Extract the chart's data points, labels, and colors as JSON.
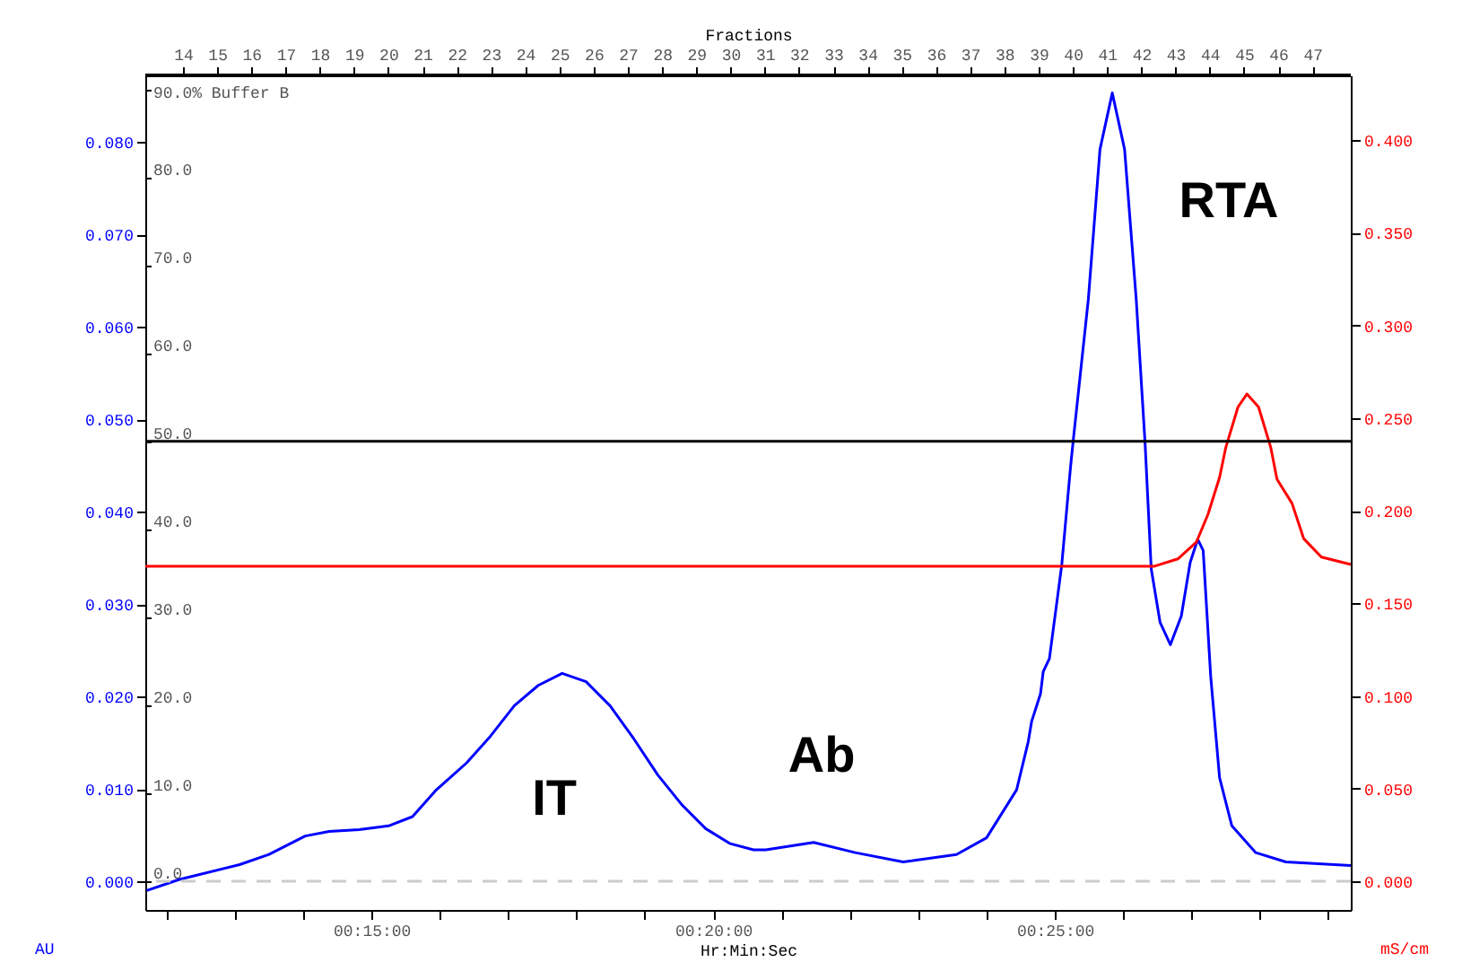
{
  "chart_data": {
    "type": "line",
    "xlabel": "Hr:Min:Sec",
    "ylabel": "AU",
    "y2label": "mS/cm",
    "x2label": "Fractions",
    "xlim": [
      11.69,
      29.33
    ],
    "xticks": [
      {
        "value": 12,
        "label": null
      },
      {
        "value": 13,
        "label": null
      },
      {
        "value": 14,
        "label": null
      },
      {
        "value": 15,
        "label": "00:15:00"
      },
      {
        "value": 16,
        "label": null
      },
      {
        "value": 17,
        "label": null
      },
      {
        "value": 18,
        "label": null
      },
      {
        "value": 19,
        "label": null
      },
      {
        "value": 20,
        "label": "00:20:00"
      },
      {
        "value": 21,
        "label": null
      },
      {
        "value": 22,
        "label": null
      },
      {
        "value": 23,
        "label": null
      },
      {
        "value": 24,
        "label": null
      },
      {
        "value": 25,
        "label": "00:25:00"
      },
      {
        "value": 26,
        "label": null
      },
      {
        "value": 27,
        "label": null
      },
      {
        "value": 28,
        "label": null
      },
      {
        "value": 29,
        "label": null
      }
    ],
    "x2lim": [
      12.9,
      48.12
    ],
    "x2ticks": [
      14,
      15,
      16,
      17,
      18,
      19,
      20,
      21,
      22,
      23,
      24,
      25,
      26,
      27,
      28,
      29,
      30,
      31,
      32,
      33,
      34,
      35,
      36,
      37,
      38,
      39,
      40,
      41,
      42,
      43,
      44,
      45,
      46,
      47
    ],
    "ylim": [
      -0.0031,
      0.0872
    ],
    "yticks": [
      {
        "value": 0,
        "label": "0.000"
      },
      {
        "value": 0.01,
        "label": "0.010"
      },
      {
        "value": 0.02,
        "label": "0.020"
      },
      {
        "value": 0.03,
        "label": "0.030"
      },
      {
        "value": 0.04,
        "label": "0.040"
      },
      {
        "value": 0.05,
        "label": "0.050"
      },
      {
        "value": 0.06,
        "label": "0.060"
      },
      {
        "value": 0.07,
        "label": "0.070"
      },
      {
        "value": 0.08,
        "label": "0.080"
      }
    ],
    "y2lim": [
      -0.0155,
      0.435
    ],
    "y2ticks": [
      {
        "value": 0,
        "label": "0.000"
      },
      {
        "value": 0.05,
        "label": "0.050"
      },
      {
        "value": 0.1,
        "label": "0.100"
      },
      {
        "value": 0.15,
        "label": "0.150"
      },
      {
        "value": 0.2,
        "label": "0.200"
      },
      {
        "value": 0.25,
        "label": "0.250"
      },
      {
        "value": 0.3,
        "label": "0.300"
      },
      {
        "value": 0.35,
        "label": "0.350"
      },
      {
        "value": 0.4,
        "label": "0.400"
      }
    ],
    "y3lim": [
      -3.3,
      91.6
    ],
    "y3ticks": [
      {
        "value": 0,
        "label": "0.0"
      },
      {
        "value": 10,
        "label": "10.0"
      },
      {
        "value": 20,
        "label": "20.0"
      },
      {
        "value": 30,
        "label": "30.0"
      },
      {
        "value": 40,
        "label": "40.0"
      },
      {
        "value": 50,
        "label": "50.0"
      },
      {
        "value": 60,
        "label": "60.0"
      },
      {
        "value": 70,
        "label": "70.0"
      },
      {
        "value": 80,
        "label": "80.0"
      },
      {
        "value": 90,
        "label": "90.0% Buffer B"
      }
    ],
    "series": [
      {
        "color": "#0000ff",
        "x": [
          11.71,
          12.19,
          13.07,
          13.5,
          14.03,
          14.38,
          14.82,
          15.25,
          15.6,
          15.95,
          16.39,
          16.74,
          17.09,
          17.44,
          17.79,
          18.14,
          18.49,
          18.84,
          19.19,
          19.54,
          19.89,
          20.24,
          20.59,
          20.77,
          21.47,
          22.08,
          22.78,
          23.56,
          24.0,
          24.44,
          24.61,
          24.66,
          24.79,
          24.83,
          24.92,
          25.1,
          25.23,
          25.27,
          25.49,
          25.66,
          25.84,
          26.02,
          26.19,
          26.32,
          26.41,
          26.54,
          26.69,
          26.85,
          26.98,
          27.09,
          27.17,
          27.28,
          27.41,
          27.59,
          27.94,
          28.38,
          29.33
        ],
        "values": [
          -0.001,
          0.0002,
          0.0018,
          0.0029,
          0.0049,
          0.0054,
          0.0056,
          0.006,
          0.007,
          0.0099,
          0.0128,
          0.0157,
          0.019,
          0.0212,
          0.0225,
          0.0216,
          0.019,
          0.0154,
          0.0115,
          0.0083,
          0.0057,
          0.0041,
          0.0034,
          0.0034,
          0.0042,
          0.0031,
          0.0021,
          0.0029,
          0.0047,
          0.0099,
          0.0151,
          0.0173,
          0.0203,
          0.0227,
          0.0241,
          0.0342,
          0.0449,
          0.0478,
          0.063,
          0.0792,
          0.0853,
          0.0792,
          0.063,
          0.0474,
          0.0338,
          0.028,
          0.0256,
          0.0287,
          0.0345,
          0.037,
          0.0358,
          0.0222,
          0.0112,
          0.006,
          0.0031,
          0.0021,
          0.0017
        ]
      },
      {
        "color": "#ff0000",
        "axis": "y2",
        "x": [
          11.69,
          26.45,
          26.8,
          27.07,
          27.24,
          27.41,
          27.5,
          27.68,
          27.81,
          27.98,
          28.16,
          28.25,
          28.47,
          28.64,
          28.9,
          29.33
        ],
        "values": [
          0.17,
          0.17,
          0.174,
          0.183,
          0.198,
          0.218,
          0.234,
          0.256,
          0.263,
          0.256,
          0.234,
          0.217,
          0.204,
          0.185,
          0.175,
          0.171
        ]
      },
      {
        "color": "#000000",
        "axis": "y3",
        "x": [
          11.69,
          29.33
        ],
        "values": [
          50,
          50
        ]
      }
    ],
    "ref_lines": [
      {
        "axis": "y",
        "value": 0,
        "color": "#cccccc",
        "line_style": "dashed"
      }
    ],
    "annotations": [
      "IT",
      "Ab",
      "RTA"
    ]
  }
}
